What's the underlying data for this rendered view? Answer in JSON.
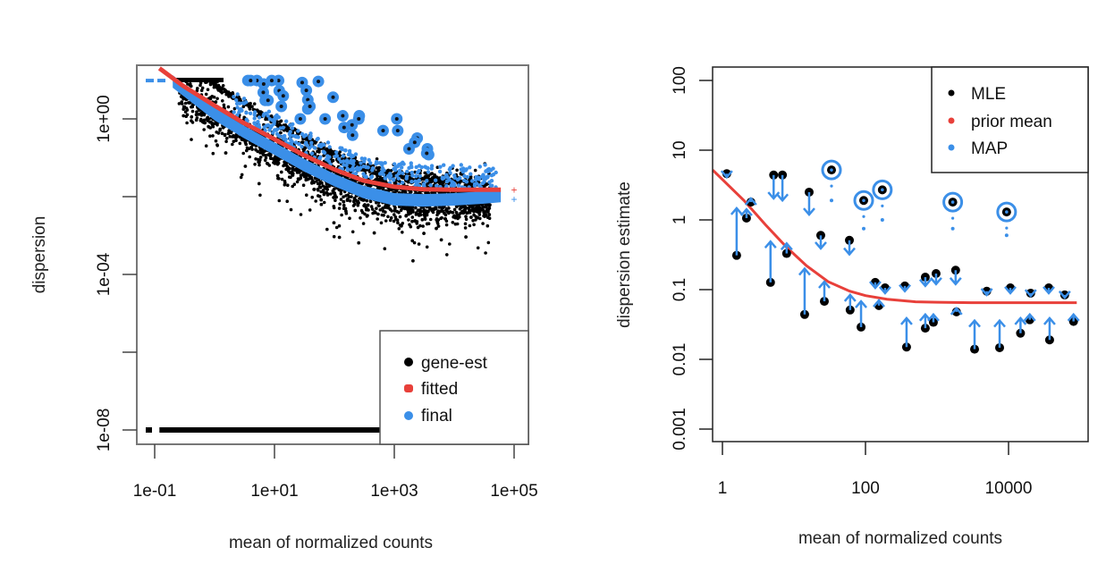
{
  "chart_data": [
    {
      "type": "scatter",
      "title": "",
      "xlabel": "mean of normalized counts",
      "ylabel": "dispersion",
      "xscale": "log",
      "yscale": "log",
      "xlim": [
        0.07,
        200000
      ],
      "ylim": [
        2e-09,
        25
      ],
      "xticks": [
        0.1,
        10,
        1000,
        100000
      ],
      "xtick_labels": [
        "1e-01",
        "1e+01",
        "1e+03",
        "1e+05"
      ],
      "yticks": [
        1,
        0.01,
        0.0001,
        1e-06,
        1e-08
      ],
      "ytick_labels": [
        "1e+00",
        "",
        "1e-04",
        "",
        "1e-08"
      ],
      "legend": {
        "position": "bottom-right",
        "entries": [
          {
            "label": "gene-est",
            "color": "#000000"
          },
          {
            "label": "fitted",
            "color": "#e8403a"
          },
          {
            "label": "final",
            "color": "#3b8fe8"
          }
        ]
      },
      "series": [
        {
          "name": "fitted",
          "color": "#e8403a",
          "x": [
            0.12,
            0.3,
            1,
            3,
            10,
            30,
            100,
            300,
            1000,
            3000,
            10000,
            30000,
            60000
          ],
          "y": [
            20,
            7,
            2.2,
            0.8,
            0.3,
            0.12,
            0.05,
            0.026,
            0.018,
            0.0155,
            0.015,
            0.015,
            0.015
          ]
        },
        {
          "name": "final",
          "color": "#3b8fe8",
          "x": [
            0.07,
            0.2,
            1,
            3,
            10,
            30,
            100,
            300,
            1000,
            3000,
            10000,
            30000,
            60000
          ],
          "y": [
            9.7,
            9.7,
            1.4,
            0.5,
            0.18,
            0.07,
            0.028,
            0.014,
            0.009,
            0.0085,
            0.009,
            0.01,
            0.011
          ]
        },
        {
          "name": "gene-est outliers (final)",
          "color": "#3b8fe8",
          "x": [
            3.6,
            5.1,
            6.6,
            4.0,
            6.5,
            7.0,
            7.8,
            11.7,
            9.0,
            12,
            14,
            13,
            29,
            34,
            36,
            36,
            27,
            39,
            54,
            95,
            70,
            138,
            145,
            197,
            201,
            260,
            255,
            650,
            1100,
            1140,
            2410,
            2190,
            1760,
            3570,
            3740,
            3480
          ],
          "y": [
            9.7,
            9.7,
            7.9,
            9.7,
            4.8,
            3.0,
            3.0,
            9.7,
            9.7,
            5.3,
            3.9,
            2.1,
            8.6,
            5.4,
            3.1,
            1.8,
            1.0,
            2.1,
            9.2,
            3.6,
            1.0,
            1.2,
            0.6,
            0.7,
            0.38,
            1.2,
            1.0,
            0.5,
            1.0,
            0.5,
            0.32,
            0.25,
            0.17,
            0.17,
            0.12,
            0.13
          ]
        },
        {
          "name": "gene-est zero row",
          "color": "#000000",
          "y_value": 1e-08,
          "x_range": [
            0.08,
            1000
          ]
        },
        {
          "name": "extra points",
          "points": [
            {
              "name": "fitted",
              "x": 100000,
              "y": 0.015
            },
            {
              "name": "final",
              "x": 100000,
              "y": 0.0086
            }
          ]
        }
      ]
    },
    {
      "type": "scatter",
      "title": "",
      "xlabel": "mean of normalized counts",
      "ylabel": "dispersion estimate",
      "xscale": "log",
      "yscale": "log",
      "xlim": [
        0.73,
        90000
      ],
      "ylim": [
        0.00065,
        120
      ],
      "xticks": [
        1,
        100,
        10000
      ],
      "xtick_labels": [
        "1",
        "100",
        "10000"
      ],
      "yticks": [
        100,
        10,
        1,
        0.1,
        0.01,
        0.001
      ],
      "ytick_labels": [
        "100",
        "10",
        "1",
        "0.1",
        "0.01",
        "0.001"
      ],
      "legend": {
        "position": "top-right",
        "entries": [
          {
            "label": "MLE",
            "color": "#000000"
          },
          {
            "label": "prior mean",
            "color": "#e8403a"
          },
          {
            "label": "MAP",
            "color": "#3b8fe8"
          }
        ]
      },
      "prior_mean": {
        "color": "#e8403a",
        "x": [
          0.73,
          1,
          2,
          4,
          8,
          15,
          30,
          60,
          100,
          200,
          500,
          1000,
          3000,
          10000,
          90000
        ],
        "y": [
          5.2,
          3.8,
          1.9,
          0.85,
          0.4,
          0.22,
          0.13,
          0.095,
          0.082,
          0.073,
          0.067,
          0.066,
          0.065,
          0.065,
          0.065
        ]
      },
      "genes": [
        {
          "x": 1.15,
          "mle": 4.6,
          "map": 4.1
        },
        {
          "x": 1.58,
          "mle": 0.31,
          "map": 1.47
        },
        {
          "x": 2.17,
          "mle": 1.06,
          "map": 1.42
        },
        {
          "x": 2.5,
          "mle": 1.8,
          "map": 2.03
        },
        {
          "x": 5.2,
          "mle": 4.4,
          "map": 2.03
        },
        {
          "x": 6.9,
          "mle": 4.4,
          "map": 1.9
        },
        {
          "x": 4.7,
          "mle": 0.127,
          "map": 0.49
        },
        {
          "x": 7.9,
          "mle": 0.33,
          "map": 0.46
        },
        {
          "x": 16.3,
          "mle": 2.5,
          "map": 1.19
        },
        {
          "x": 14.1,
          "mle": 0.044,
          "map": 0.2
        },
        {
          "x": 23.7,
          "mle": 0.6,
          "map": 0.39
        },
        {
          "x": 26.6,
          "mle": 0.068,
          "map": 0.13
        },
        {
          "x": 59.6,
          "mle": 0.51,
          "map": 0.32
        },
        {
          "x": 61,
          "mle": 0.051,
          "map": 0.084
        },
        {
          "x": 86.7,
          "mle": 0.029,
          "map": 0.068
        },
        {
          "x": 137,
          "mle": 0.127,
          "map": 0.106
        },
        {
          "x": 188,
          "mle": 0.106,
          "map": 0.089
        },
        {
          "x": 355,
          "mle": 0.113,
          "map": 0.095
        },
        {
          "x": 686,
          "mle": 0.151,
          "map": 0.113
        },
        {
          "x": 970,
          "mle": 0.17,
          "map": 0.12
        },
        {
          "x": 1820,
          "mle": 0.19,
          "map": 0.12
        },
        {
          "x": 4960,
          "mle": 0.095,
          "map": 0.084
        },
        {
          "x": 10600,
          "mle": 0.106,
          "map": 0.089
        },
        {
          "x": 20400,
          "mle": 0.089,
          "map": 0.081
        },
        {
          "x": 36500,
          "mle": 0.106,
          "map": 0.089
        },
        {
          "x": 61000,
          "mle": 0.084,
          "map": 0.077
        },
        {
          "x": 154,
          "mle": 0.059,
          "map": 0.07
        },
        {
          "x": 375,
          "mle": 0.015,
          "map": 0.039
        },
        {
          "x": 686,
          "mle": 0.028,
          "map": 0.044
        },
        {
          "x": 890,
          "mle": 0.034,
          "map": 0.044
        },
        {
          "x": 1870,
          "mle": 0.048,
          "map": 0.054
        },
        {
          "x": 3350,
          "mle": 0.014,
          "map": 0.036
        },
        {
          "x": 7500,
          "mle": 0.0147,
          "map": 0.036
        },
        {
          "x": 14700,
          "mle": 0.0237,
          "map": 0.039
        },
        {
          "x": 19800,
          "mle": 0.037,
          "map": 0.044
        },
        {
          "x": 37500,
          "mle": 0.019,
          "map": 0.039
        },
        {
          "x": 81000,
          "mle": 0.035,
          "map": 0.044
        }
      ],
      "outliers": [
        {
          "x": 33.5,
          "mle": 5.2,
          "map": 1.9
        },
        {
          "x": 94.4,
          "mle": 1.9,
          "map": 0.75
        },
        {
          "x": 172,
          "mle": 2.7,
          "map": 1.0
        },
        {
          "x": 1660,
          "mle": 1.8,
          "map": 0.75
        },
        {
          "x": 9400,
          "mle": 1.3,
          "map": 0.6
        }
      ]
    }
  ]
}
